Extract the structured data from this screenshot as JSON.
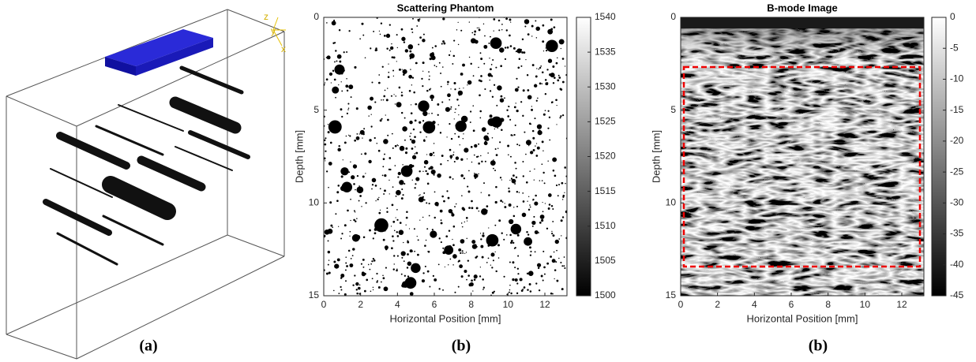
{
  "figure_a": {
    "axis_labels": [
      "z",
      "y",
      "x"
    ],
    "caption": "(a)"
  },
  "chart_data": [
    {
      "type": "image",
      "title": "Scattering Phantom",
      "xlabel": "Horizontal Position [mm]",
      "ylabel": "Depth [mm]",
      "xlim": [
        0,
        13.2
      ],
      "ylim": [
        0,
        15
      ],
      "xticks": [
        0,
        2,
        4,
        6,
        8,
        10,
        12
      ],
      "yticks": [
        0,
        5,
        10,
        15
      ],
      "clim": [
        1500,
        1540
      ],
      "cticks": [
        1500,
        1505,
        1510,
        1515,
        1520,
        1525,
        1530,
        1535,
        1540
      ],
      "colormap": [
        "#000000",
        "#ffffff"
      ],
      "caption": "(b)"
    },
    {
      "type": "image",
      "title": "B-mode Image",
      "xlabel": "Horizontal Position [mm]",
      "ylabel": "Depth [mm]",
      "xlim": [
        0,
        13.2
      ],
      "ylim": [
        0,
        15
      ],
      "xticks": [
        0,
        2,
        4,
        6,
        8,
        10,
        12
      ],
      "yticks": [
        0,
        5,
        10,
        15
      ],
      "clim": [
        -45,
        0
      ],
      "cticks": [
        0,
        -5,
        -10,
        -15,
        -20,
        -25,
        -30,
        -35,
        -40,
        -45
      ],
      "colormap": [
        "#000000",
        "#ffffff"
      ],
      "caption": "(b)"
    }
  ]
}
